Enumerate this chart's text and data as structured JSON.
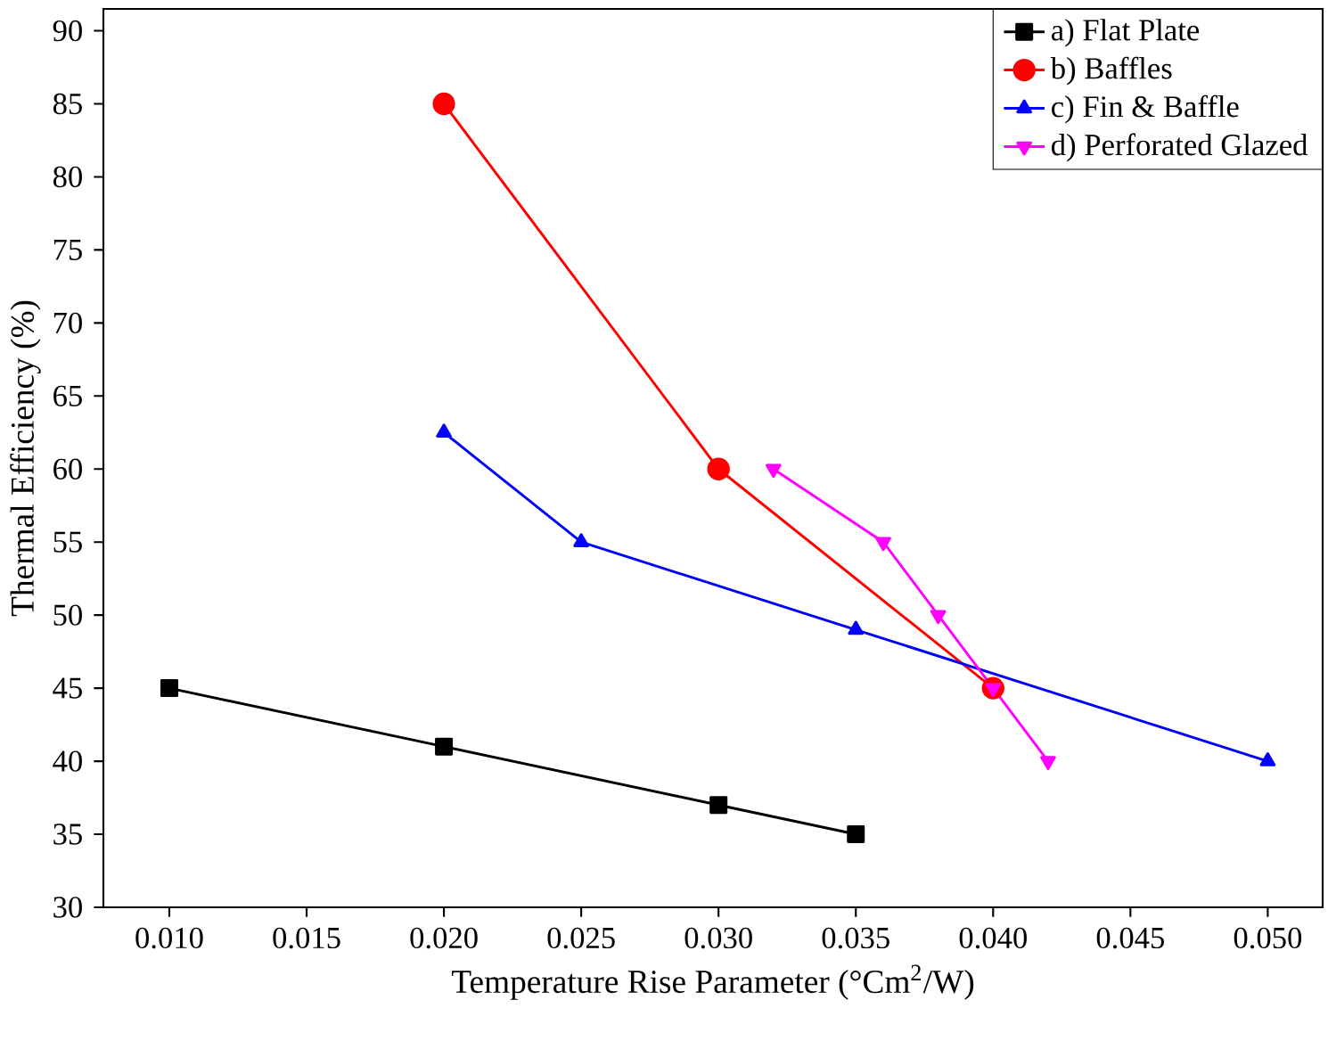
{
  "chart_data": {
    "type": "line",
    "xlabel": "Temperature Rise Parameter (°Cm$^{2}$/W)",
    "ylabel": "Thermal Efficiency (%)",
    "xlim": [
      0.0076,
      0.052
    ],
    "ylim": [
      30,
      91.5
    ],
    "xticks": [
      {
        "value": 0.01,
        "label": "0.010"
      },
      {
        "value": 0.015,
        "label": "0.015"
      },
      {
        "value": 0.02,
        "label": "0.020"
      },
      {
        "value": 0.025,
        "label": "0.025"
      },
      {
        "value": 0.03,
        "label": "0.030"
      },
      {
        "value": 0.035,
        "label": "0.035"
      },
      {
        "value": 0.04,
        "label": "0.040"
      },
      {
        "value": 0.045,
        "label": "0.045"
      },
      {
        "value": 0.05,
        "label": "0.050"
      }
    ],
    "yticks": [
      30,
      35,
      40,
      45,
      50,
      55,
      60,
      65,
      70,
      75,
      80,
      85,
      90
    ],
    "legend": "top right",
    "grid": false,
    "series": [
      {
        "name": "a) Flat Plate",
        "color": "#000000",
        "marker": "square",
        "x": [
          0.01,
          0.02,
          0.03,
          0.035
        ],
        "values": [
          45,
          41,
          37,
          35
        ]
      },
      {
        "name": "b) Baffles",
        "color": "#ff0000",
        "marker": "circle",
        "x": [
          0.02,
          0.03,
          0.04
        ],
        "values": [
          85,
          60,
          45
        ]
      },
      {
        "name": "c) Fin & Baffle",
        "color": "#0000ff",
        "marker": "triangle",
        "x": [
          0.02,
          0.025,
          0.035,
          0.05
        ],
        "values": [
          62.5,
          55,
          49,
          40
        ]
      },
      {
        "name": "d) Perforated Glazed",
        "color": "#ff00ff",
        "marker": "triangle_down",
        "x": [
          0.032,
          0.036,
          0.038,
          0.04,
          0.042
        ],
        "values": [
          60,
          55,
          50,
          45,
          40
        ]
      }
    ]
  }
}
